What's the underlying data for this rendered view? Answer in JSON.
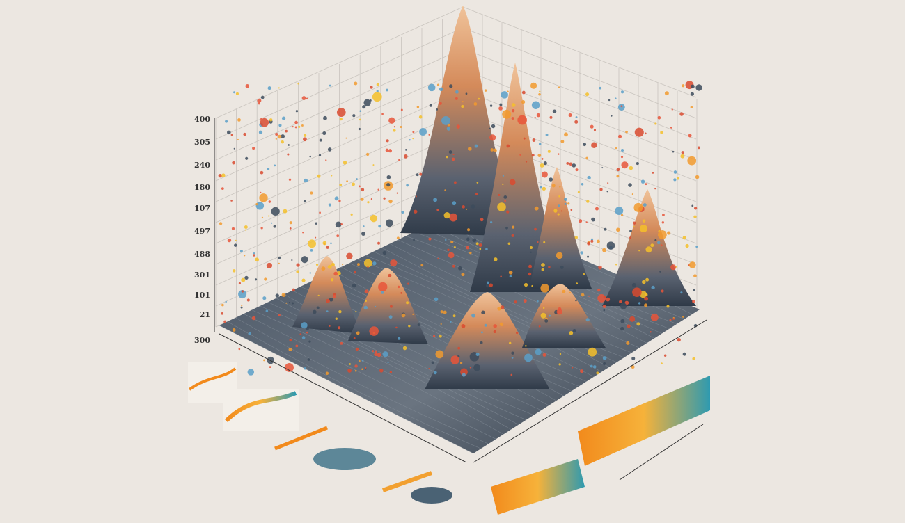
{
  "axis_labels": [
    "400",
    "305",
    "240",
    "180",
    "107",
    "497",
    "488",
    "301",
    "101",
    "21",
    "300"
  ]
}
